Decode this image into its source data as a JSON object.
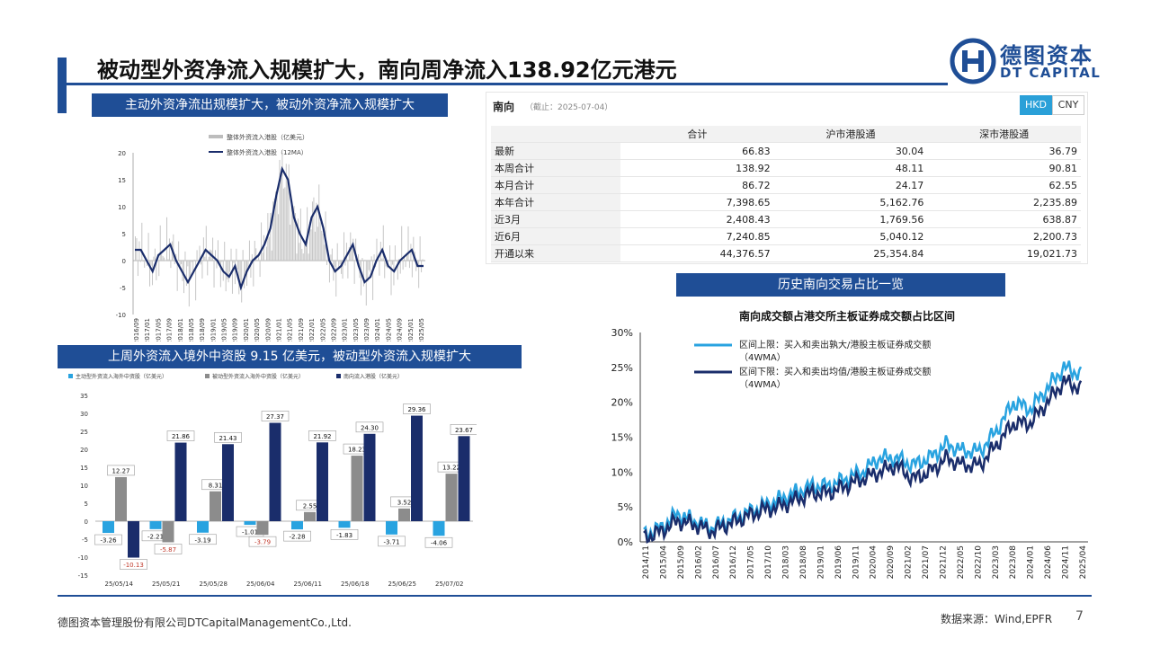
{
  "title": "被动型外资净流入规模扩大，南向周净流入138.92亿元港元",
  "logo": {
    "cn": "德图资本",
    "en": "DT CAPITAL"
  },
  "colors": {
    "brand": "#1f4e96",
    "navy": "#1a2d6b",
    "grey": "#8c8c8c",
    "lightblue": "#29a3e0"
  },
  "chart1": {
    "banner": "主动外资净流出规模扩大，被动外资净流入规模扩大",
    "legend": [
      "整体外资流入港股（亿美元）",
      "整体外资流入港股（12MA）"
    ],
    "y_ticks": [
      "20",
      "15",
      "10",
      "5",
      "0",
      "-5",
      "-10"
    ],
    "x_ticks": [
      "2016/09",
      "2017/01",
      "2017/05",
      "2017/09",
      "2018/01",
      "2018/05",
      "2018/09",
      "2019/01",
      "2019/05",
      "2019/09",
      "2020/01",
      "2020/05",
      "2020/09",
      "2021/01",
      "2021/05",
      "2021/09",
      "2022/01",
      "2022/05",
      "2022/09",
      "2023/01",
      "2023/05",
      "2023/09",
      "2024/01",
      "2024/05",
      "2024/09",
      "2025/01",
      "2025/05"
    ]
  },
  "chart2": {
    "banner": "上周外资流入境外中资股 9.15 亿美元，被动型外资流入规模扩大",
    "legend": [
      "主动型外资流入海外中资股（亿美元）",
      "被动型外资流入海外中资股（亿美元）",
      "南向流入港股（亿美元）"
    ],
    "y_ticks": [
      "35",
      "30",
      "25",
      "20",
      "15",
      "10",
      "5",
      "0",
      "-5",
      "-10",
      "-15"
    ]
  },
  "south_table": {
    "header": "南向",
    "date": "（截止：2025-07-04）",
    "btn_hkd": "HKD",
    "btn_cny": "CNY",
    "columns": [
      "",
      "合计",
      "沪市港股通",
      "深市港股通"
    ],
    "rows": [
      [
        "最新",
        "66.83",
        "30.04",
        "36.79"
      ],
      [
        "本周合计",
        "138.92",
        "48.11",
        "90.81"
      ],
      [
        "本月合计",
        "86.72",
        "24.17",
        "62.55"
      ],
      [
        "本年合计",
        "7,398.65",
        "5,162.76",
        "2,235.89"
      ],
      [
        "近3月",
        "2,408.43",
        "1,769.56",
        "638.87"
      ],
      [
        "近6月",
        "7,240.85",
        "5,040.12",
        "2,200.73"
      ],
      [
        "开通以来",
        "44,376.57",
        "25,354.84",
        "19,021.73"
      ]
    ]
  },
  "chart3": {
    "banner": "历史南向交易占比一览",
    "legend": [
      "区间上限：买入和卖出孰大/港股主板证券成交额（4WMA）",
      "区间下限：买入和卖出均值/港股主板证券成交额（4WMA）"
    ],
    "y_ticks": [
      "30%",
      "25%",
      "20%",
      "15%",
      "10%",
      "5%",
      "0%"
    ],
    "x_ticks": [
      "2014/11",
      "2015/04",
      "2015/09",
      "2016/02",
      "2016/07",
      "2016/12",
      "2017/05",
      "2017/10",
      "2018/03",
      "2018/08",
      "2019/01",
      "2019/06",
      "2019/11",
      "2020/04",
      "2020/09",
      "2021/02",
      "2021/07",
      "2021/12",
      "2022/05",
      "2022/10",
      "2023/03",
      "2023/08",
      "2024/01",
      "2024/06",
      "2024/11",
      "2025/04"
    ]
  },
  "chart_data": [
    {
      "type": "line",
      "title": "主动外资净流出规模扩大，被动外资净流入规模扩大",
      "ylim": [
        -10,
        20
      ],
      "series": [
        {
          "name": "整体外资流入港股（12MA）",
          "values": [
            2,
            2,
            0,
            -2,
            1,
            2,
            3,
            0,
            -2,
            -4,
            -2,
            0,
            2,
            1,
            0,
            -2,
            -3,
            -1,
            -5,
            -2,
            0,
            1,
            3,
            6,
            12,
            17,
            15,
            8,
            5,
            3,
            8,
            10,
            6,
            0,
            -2,
            -1,
            1,
            3,
            -1,
            -4,
            -3,
            0,
            2,
            -1,
            -2,
            0,
            1,
            2,
            -1,
            -1
          ]
        }
      ]
    },
    {
      "type": "bar",
      "title": "上周外资流入境外中资股 9.15 亿美元，被动型外资流入规模扩大",
      "categories": [
        "25/05/14",
        "25/05/21",
        "25/05/28",
        "25/06/04",
        "25/06/11",
        "25/06/18",
        "25/06/25",
        "25/07/02"
      ],
      "ylim": [
        -15,
        35
      ],
      "series": [
        {
          "name": "主动型外资流入海外中资股（亿美元）",
          "values": [
            -3.26,
            -2.21,
            -3.19,
            -1.01,
            -2.28,
            -1.83,
            -3.71,
            -4.06
          ]
        },
        {
          "name": "被动型外资流入海外中资股（亿美元）",
          "values": [
            12.27,
            -5.87,
            8.31,
            -3.79,
            2.55,
            18.23,
            3.52,
            13.22
          ]
        },
        {
          "name": "南向流入港股（亿美元）",
          "values": [
            -10.13,
            21.86,
            21.43,
            27.37,
            21.92,
            24.3,
            29.36,
            23.67
          ]
        }
      ]
    },
    {
      "type": "line",
      "title": "南向成交额占港交所主板证券成交额占比区间",
      "ylim": [
        0,
        30
      ],
      "series": [
        {
          "name": "区间上限：买入和卖出孰大/港股主板证券成交额（4WMA）",
          "values": [
            1,
            2,
            4,
            3,
            2,
            3,
            4,
            5,
            6,
            7,
            8,
            8,
            9,
            10,
            12,
            12,
            11,
            12,
            14,
            13,
            13,
            16,
            20,
            19,
            22,
            25,
            24
          ]
        },
        {
          "name": "区间下限：买入和卖出均值/港股主板证券成交额（4WMA）",
          "values": [
            0.5,
            1.5,
            3,
            2.5,
            1.5,
            2.5,
            3.5,
            4.5,
            5,
            6,
            7,
            7,
            8,
            9,
            10,
            11,
            9,
            10,
            12,
            11,
            11,
            14,
            17,
            17,
            20,
            23,
            22
          ]
        }
      ]
    }
  ],
  "footer": {
    "left": "德图资本管理股份有限公司DTCapitalManagementCo.,Ltd.",
    "source": "数据来源：Wind,EPFR",
    "page": "7"
  }
}
